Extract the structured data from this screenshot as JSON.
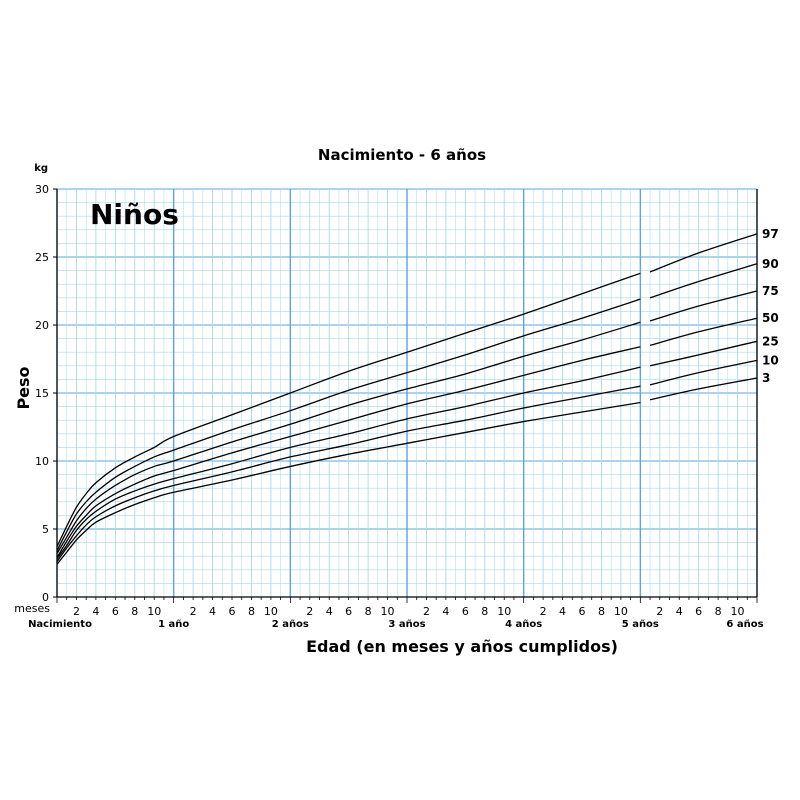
{
  "chart_data": {
    "type": "line",
    "title": "Nacimiento - 6 años",
    "chart_label": "Niños",
    "ylabel": "Peso",
    "yunit": "kg",
    "xlabel": "Edad (en meses y años cumplidos)",
    "xunit": "meses",
    "ylim": [
      0,
      30
    ],
    "yticks": [
      0,
      5,
      10,
      15,
      20,
      25,
      30
    ],
    "xlim_months": [
      0,
      72
    ],
    "month_tick_labels": [
      "2",
      "4",
      "6",
      "8",
      "10"
    ],
    "year_labels": [
      "Nacimiento",
      "1 año",
      "2 años",
      "3 años",
      "4 años",
      "5 años",
      "6 años"
    ],
    "grid": true,
    "x_months": [
      0,
      1,
      2,
      3,
      4,
      6,
      8,
      10,
      12,
      18,
      24,
      30,
      36,
      42,
      48,
      54,
      60,
      61,
      66,
      72
    ],
    "series": [
      {
        "name": "97",
        "values": [
          3.7,
          5.2,
          6.6,
          7.6,
          8.4,
          9.5,
          10.3,
          11.0,
          11.8,
          13.4,
          15.0,
          16.6,
          18.0,
          19.4,
          20.8,
          22.3,
          23.8,
          23.9,
          25.3,
          26.7
        ]
      },
      {
        "name": "90",
        "values": [
          3.4,
          4.8,
          6.1,
          7.0,
          7.7,
          8.8,
          9.6,
          10.3,
          10.8,
          12.3,
          13.7,
          15.2,
          16.5,
          17.8,
          19.2,
          20.5,
          21.9,
          22.0,
          23.2,
          24.5
        ]
      },
      {
        "name": "75",
        "values": [
          3.2,
          4.4,
          5.6,
          6.5,
          7.2,
          8.2,
          9.0,
          9.6,
          10.0,
          11.4,
          12.7,
          14.1,
          15.3,
          16.4,
          17.7,
          18.9,
          20.2,
          20.3,
          21.4,
          22.5
        ]
      },
      {
        "name": "50",
        "values": [
          2.9,
          4.1,
          5.2,
          6.0,
          6.7,
          7.6,
          8.3,
          8.9,
          9.3,
          10.6,
          11.8,
          13.0,
          14.2,
          15.2,
          16.3,
          17.4,
          18.4,
          18.5,
          19.5,
          20.5
        ]
      },
      {
        "name": "25",
        "values": [
          2.8,
          3.8,
          4.9,
          5.7,
          6.3,
          7.2,
          7.8,
          8.3,
          8.7,
          9.8,
          11.0,
          12.0,
          13.1,
          14.0,
          15.0,
          15.9,
          16.9,
          17.0,
          17.8,
          18.8
        ]
      },
      {
        "name": "10",
        "values": [
          2.6,
          3.6,
          4.5,
          5.3,
          5.9,
          6.7,
          7.3,
          7.8,
          8.2,
          9.2,
          10.3,
          11.2,
          12.2,
          13.0,
          13.9,
          14.7,
          15.5,
          15.6,
          16.5,
          17.4
        ]
      },
      {
        "name": "3",
        "values": [
          2.4,
          3.3,
          4.2,
          4.9,
          5.5,
          6.2,
          6.8,
          7.3,
          7.7,
          8.6,
          9.6,
          10.5,
          11.3,
          12.1,
          12.9,
          13.6,
          14.3,
          14.5,
          15.3,
          16.1
        ]
      }
    ],
    "colors": {
      "grid_minor": "#a9d8ee",
      "grid_major": "#5aa6d8",
      "curves": "#000000"
    }
  }
}
